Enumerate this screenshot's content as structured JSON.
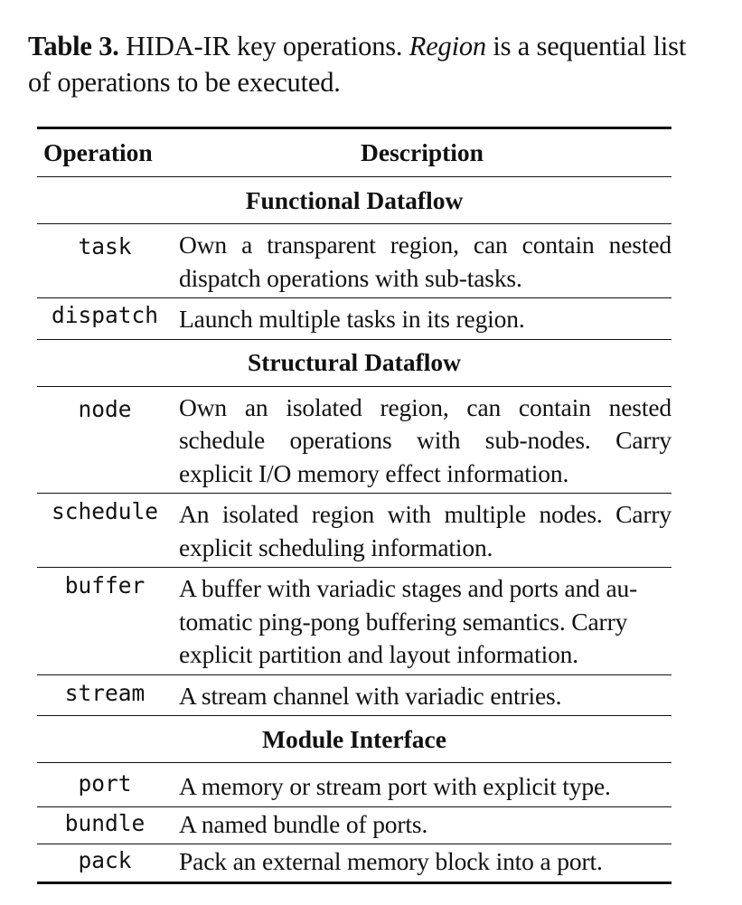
{
  "caption": {
    "label": "Table 3.",
    "text_before_emph": " HIDA-IR key operations. ",
    "emph": "Region",
    "text_after_emph": " is a sequential list of operations to be executed."
  },
  "table": {
    "headers": {
      "operation": "Operation",
      "description": "Description"
    },
    "sections": [
      {
        "title": "Functional Dataflow",
        "rows": [
          {
            "op": "task",
            "desc": "Own a transparent region, can contain nested dispatch operations with sub-tasks."
          },
          {
            "op": "dispatch",
            "desc": "Launch multiple tasks in its region."
          }
        ]
      },
      {
        "title": "Structural Dataflow",
        "rows": [
          {
            "op": "node",
            "desc": "Own an isolated region, can contain nested schedule operations with sub-nodes. Carry explicit I/O memory effect information."
          },
          {
            "op": "schedule",
            "desc": "An isolated region with multiple nodes. Carry explicit scheduling information."
          },
          {
            "op": "buffer",
            "desc": "A buffer with variadic stages and ports and au-tomatic ping-pong buffering semantics. Carry explicit partition and layout information."
          },
          {
            "op": "stream",
            "desc": "A stream channel with variadic entries."
          }
        ]
      },
      {
        "title": "Module Interface",
        "rows": [
          {
            "op": "port",
            "desc": "A memory or stream port with explicit type."
          },
          {
            "op": "bundle",
            "desc": "A named bundle of ports."
          },
          {
            "op": "pack",
            "desc": "Pack an external memory block into a port."
          }
        ]
      }
    ]
  }
}
